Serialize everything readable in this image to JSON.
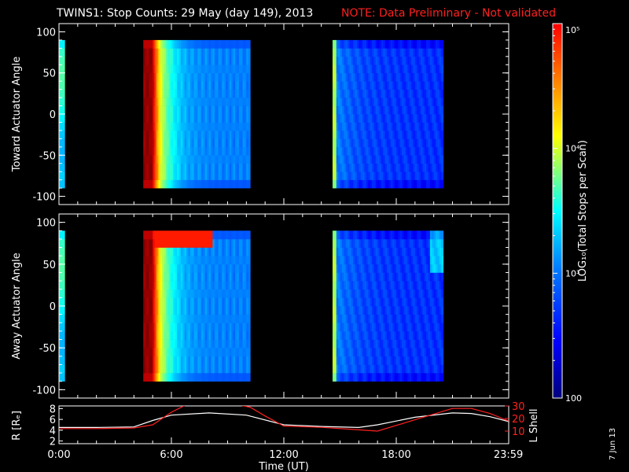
{
  "title": "TWINS1: Stop Counts: 29 May (day 149), 2013",
  "note": "NOTE: Data Preliminary - Not validated",
  "date_stamp": "7 Jun 13",
  "colors": {
    "note": "#ff2020",
    "lshell": "#ff2020",
    "r_line": "#ffffff",
    "background": "#000000"
  },
  "chart_data": [
    {
      "type": "heatmap",
      "panel": "toward",
      "ylabel": "Toward Actuator Angle",
      "ylim": [
        -110,
        110
      ],
      "yticks": [
        "100",
        "50",
        "0",
        "-50",
        "-100"
      ],
      "xlim_hours": [
        0,
        24
      ],
      "angle_range": [
        -90,
        90
      ],
      "data_windows": [
        {
          "start": 0,
          "end": 0.25,
          "level": "mid"
        },
        {
          "start": 4.5,
          "end": 10.15,
          "level": "decaying"
        },
        {
          "start": 14.6,
          "end": 20.4,
          "level": "low"
        }
      ],
      "peak_time_hours": 5.0
    },
    {
      "type": "heatmap",
      "panel": "away",
      "ylabel": "Away Actuator Angle",
      "ylim": [
        -110,
        110
      ],
      "yticks": [
        "100",
        "50",
        "0",
        "-50",
        "-100"
      ],
      "xlim_hours": [
        0,
        24
      ],
      "angle_range": [
        -90,
        90
      ],
      "data_windows": [
        {
          "start": 0,
          "end": 0.25,
          "level": "mid"
        },
        {
          "start": 4.5,
          "end": 10.15,
          "level": "decaying"
        },
        {
          "start": 14.6,
          "end": 20.4,
          "level": "low"
        }
      ],
      "high_angle_band": [
        70,
        90
      ],
      "peak_time_hours": 5.0
    },
    {
      "type": "line",
      "panel": "orbit",
      "ylabel_left": "R [Rₑ]",
      "ylabel_right": "L Shell",
      "xlabel": "Time (UT)",
      "xticks": [
        "0:00",
        "6:00",
        "12:00",
        "18:00",
        "23:59"
      ],
      "ylim_left": [
        1.5,
        8.5
      ],
      "yticks_left": [
        "8",
        "6",
        "4",
        "2"
      ],
      "ylim_right": [
        0,
        30
      ],
      "yticks_right": [
        "30",
        "20",
        "10"
      ],
      "series": [
        {
          "x": [
            0,
            2,
            4,
            5,
            6,
            8,
            10,
            12,
            14,
            16,
            17,
            19,
            21,
            22,
            23,
            24
          ],
          "values": [
            4.5,
            4.5,
            4.6,
            5.8,
            6.8,
            7.2,
            6.8,
            5.0,
            4.7,
            4.5,
            5.0,
            6.4,
            7.2,
            7.1,
            6.5,
            5.6
          ]
        },
        {
          "x": [
            0,
            2,
            4,
            5,
            6,
            6.8,
            9.5,
            10.2,
            11,
            12,
            14,
            16,
            17,
            19,
            21,
            22,
            23,
            24
          ],
          "values": [
            12,
            12,
            12.5,
            15,
            25,
            31,
            31,
            29,
            22,
            14,
            13,
            11,
            10,
            19,
            28,
            28,
            24,
            18
          ]
        }
      ]
    },
    {
      "type": "heatmap",
      "panel": "colorbar",
      "label": "LOG₁₀(Total Stops per Scan)",
      "ticks": [
        "10⁵",
        "10⁴",
        "10³",
        "100"
      ],
      "range_log": [
        2,
        5
      ]
    }
  ]
}
